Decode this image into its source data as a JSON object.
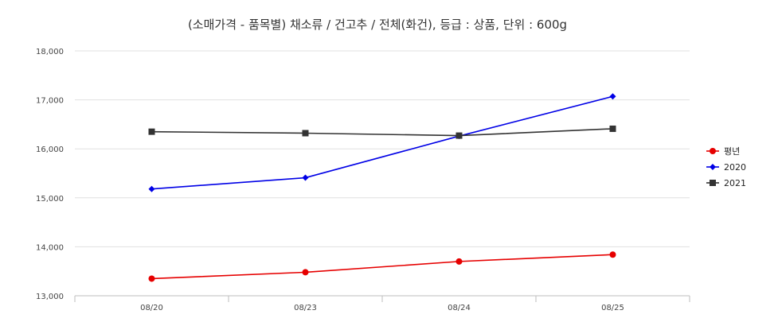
{
  "chart_data": {
    "type": "line",
    "title": "(소매가격 - 품목별) 채소류 / 건고추 / 전체(화건), 등급 : 상품, 단위 : 600g",
    "categories": [
      "08/20",
      "08/23",
      "08/24",
      "08/25"
    ],
    "ylim": [
      13000,
      18000
    ],
    "yticks": [
      13000,
      14000,
      15000,
      16000,
      17000,
      18000
    ],
    "ytick_labels": [
      "13,000",
      "14,000",
      "15,000",
      "16,000",
      "17,000",
      "18,000"
    ],
    "grid": true,
    "legend_position": "right",
    "series": [
      {
        "name": "평년",
        "color": "#e60000",
        "marker": "circle",
        "values": [
          13350,
          13480,
          13700,
          13840
        ]
      },
      {
        "name": "2020",
        "color": "#0000e6",
        "marker": "diamond",
        "values": [
          15180,
          15410,
          16260,
          17070
        ]
      },
      {
        "name": "2021",
        "color": "#333333",
        "marker": "square",
        "values": [
          16350,
          16320,
          16270,
          16410
        ]
      }
    ]
  }
}
